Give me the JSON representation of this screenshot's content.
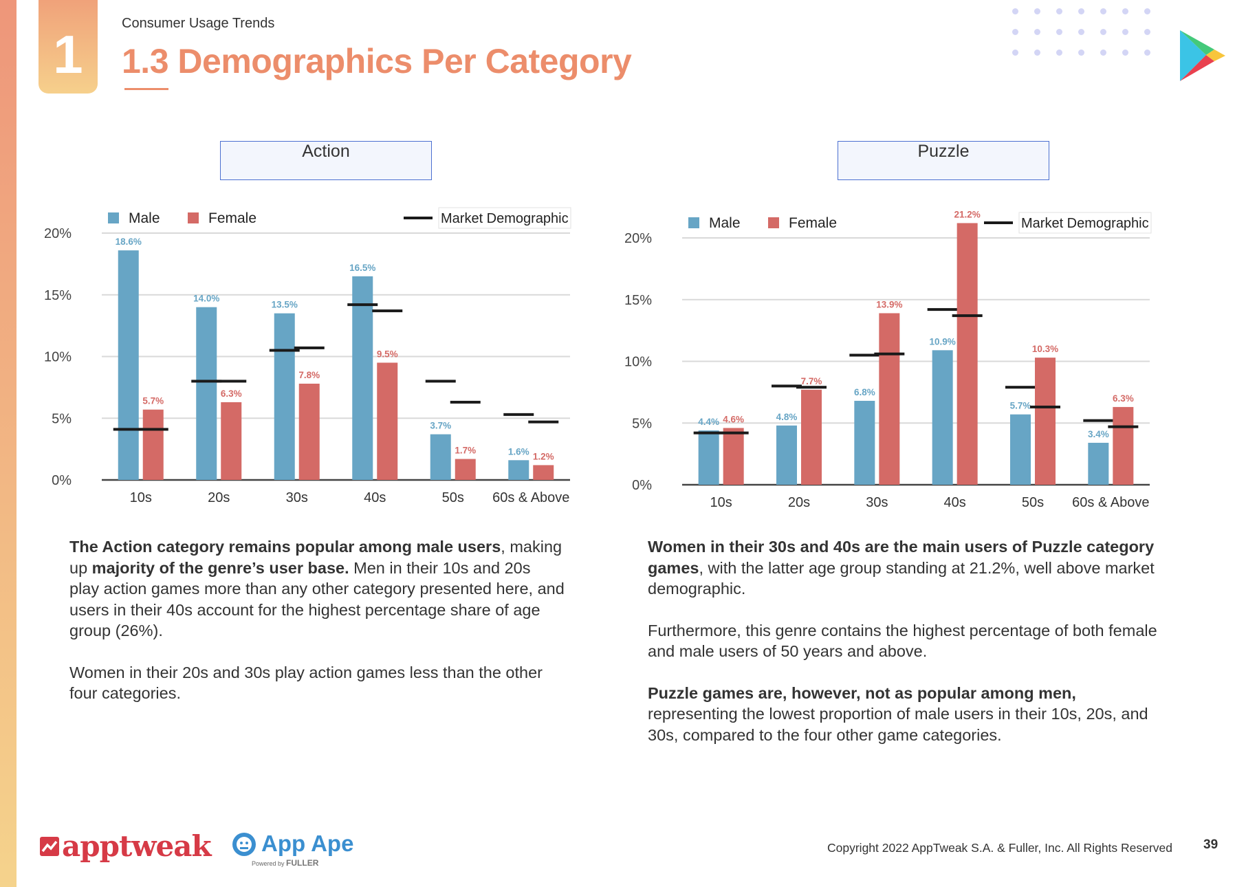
{
  "header": {
    "section_number": "1",
    "kicker": "Consumer Usage Trends",
    "title": "1.3 Demographics Per Category"
  },
  "colors": {
    "male": "#67a5c5",
    "female": "#d46a66",
    "market": "#1a1a1a",
    "accent": "#ec8d6b"
  },
  "chart_data": [
    {
      "type": "bar",
      "title": "Action",
      "categories": [
        "10s",
        "20s",
        "30s",
        "40s",
        "50s",
        "60s & Above"
      ],
      "ylim": [
        0,
        20
      ],
      "yticks": [
        "0%",
        "5%",
        "10%",
        "15%",
        "20%"
      ],
      "ytick_values": [
        0,
        5,
        10,
        15,
        20
      ],
      "legend": {
        "male": "Male",
        "female": "Female",
        "market": "Market Demographic",
        "placement": "top"
      },
      "series": [
        {
          "name": "Male",
          "values": [
            18.6,
            14.0,
            13.5,
            16.5,
            3.7,
            1.6
          ],
          "labels": [
            "18.6%",
            "14.0%",
            "13.5%",
            "16.5%",
            "3.7%",
            "1.6%"
          ]
        },
        {
          "name": "Female",
          "values": [
            5.7,
            6.3,
            7.8,
            9.5,
            1.7,
            1.2
          ],
          "labels": [
            "5.7%",
            "6.3%",
            "7.8%",
            "9.5%",
            "1.7%",
            "1.2%"
          ]
        }
      ],
      "market": {
        "male": [
          4.1,
          8.0,
          10.5,
          14.2,
          8.0,
          5.3
        ],
        "female": [
          4.1,
          8.0,
          10.7,
          13.7,
          6.3,
          4.7
        ]
      }
    },
    {
      "type": "bar",
      "title": "Puzzle",
      "categories": [
        "10s",
        "20s",
        "30s",
        "40s",
        "50s",
        "60s & Above"
      ],
      "ylim": [
        0,
        20
      ],
      "yticks": [
        "0%",
        "5%",
        "10%",
        "15%",
        "20%"
      ],
      "ytick_values": [
        0,
        5,
        10,
        15,
        20
      ],
      "legend": {
        "male": "Male",
        "female": "Female",
        "market": "Market Demographic",
        "placement": "top"
      },
      "series": [
        {
          "name": "Male",
          "values": [
            4.4,
            4.8,
            6.8,
            10.9,
            5.7,
            3.4
          ],
          "labels": [
            "4.4%",
            "4.8%",
            "6.8%",
            "10.9%",
            "5.7%",
            "3.4%"
          ]
        },
        {
          "name": "Female",
          "values": [
            4.6,
            7.7,
            13.9,
            21.2,
            10.3,
            6.3
          ],
          "labels": [
            "4.6%",
            "7.7%",
            "13.9%",
            "21.2%",
            "10.3%",
            "6.3%"
          ]
        }
      ],
      "market": {
        "male": [
          4.2,
          8.0,
          10.5,
          14.2,
          7.9,
          5.2
        ],
        "female": [
          4.2,
          7.9,
          10.6,
          13.7,
          6.3,
          4.7
        ]
      }
    }
  ],
  "text": {
    "action": {
      "p1_b1": "The Action category remains popular among male users",
      "p1_t1": ", making up ",
      "p1_b2": "majority of the genre’s user base.",
      "p1_t2": " Men in their 10s and 20s play action games more than any other category presented here, and users in their 40s account for the highest percentage share of age group (26%).",
      "p2": "Women in their 20s and 30s play action games less than the other four categories."
    },
    "puzzle": {
      "p1_b1": "Women in their 30s and 40s are the main users of Puzzle category games",
      "p1_t1": ", with the latter age group standing at 21.2%, well above market demographic.",
      "p2": "Furthermore, this genre contains the highest percentage of both female and male users of 50 years and above.",
      "p3_b1": "Puzzle games are, however, not as popular among men,",
      "p3_t1": " representing the lowest proportion of male users in their 10s, 20s, and 30s, compared to the four other game categories."
    }
  },
  "footer": {
    "logo1": "apptweak",
    "logo2": "App Ape",
    "logo2_sub": "Powered by",
    "logo2_sub2": "FULLER",
    "copyright": "Copyright 2022 AppTweak S.A. & Fuller, Inc. All Rights Reserved",
    "page": "39"
  }
}
